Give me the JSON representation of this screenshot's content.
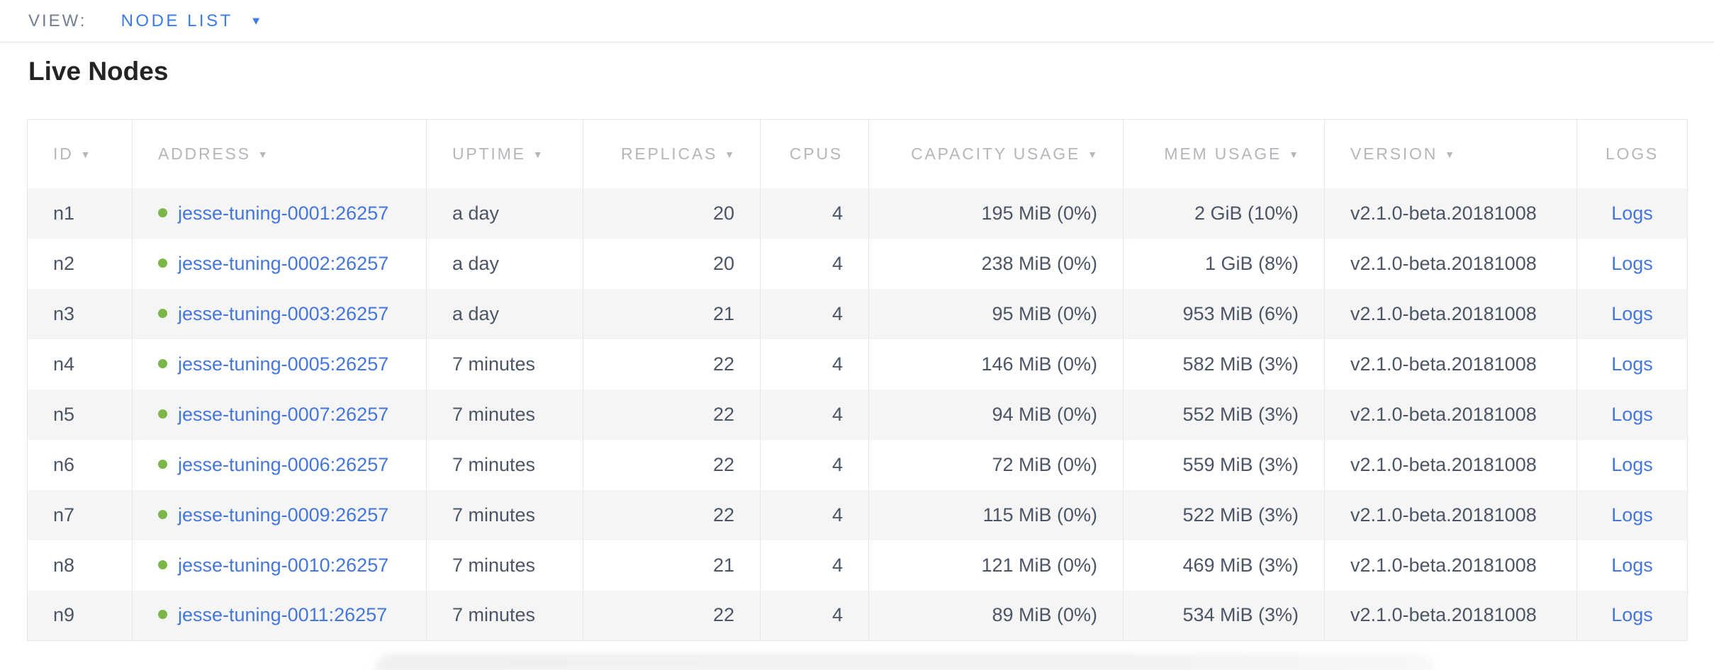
{
  "view_bar": {
    "label": "VIEW:",
    "selected": "NODE LIST"
  },
  "page": {
    "title": "Live Nodes"
  },
  "colors": {
    "view_link_blue": "#3b7ce8",
    "link_blue": "#4477dd",
    "live_status_green": "#7ab648",
    "header_text_gray": "#b3b6ba",
    "cell_text": "#4c5566",
    "row_stripe": "#f5f5f6",
    "border": "#e7e7e7"
  },
  "table": {
    "columns": [
      {
        "key": "id",
        "label": "ID",
        "sortable": true,
        "align": "left"
      },
      {
        "key": "address",
        "label": "ADDRESS",
        "sortable": true,
        "align": "left"
      },
      {
        "key": "uptime",
        "label": "UPTIME",
        "sortable": true,
        "align": "left"
      },
      {
        "key": "replicas",
        "label": "REPLICAS",
        "sortable": true,
        "align": "right"
      },
      {
        "key": "cpus",
        "label": "CPUS",
        "sortable": false,
        "align": "right"
      },
      {
        "key": "capacity",
        "label": "CAPACITY USAGE",
        "sortable": true,
        "align": "right"
      },
      {
        "key": "mem",
        "label": "MEM USAGE",
        "sortable": true,
        "align": "right"
      },
      {
        "key": "version",
        "label": "VERSION",
        "sortable": true,
        "align": "left"
      },
      {
        "key": "logs",
        "label": "LOGS",
        "sortable": false,
        "align": "center"
      }
    ],
    "rows": [
      {
        "id": "n1",
        "address": "jesse-tuning-0001:26257",
        "status": "live",
        "uptime": "a day",
        "replicas": "20",
        "cpus": "4",
        "capacity": "195 MiB (0%)",
        "mem": "2 GiB (10%)",
        "version": "v2.1.0-beta.20181008",
        "logs": "Logs"
      },
      {
        "id": "n2",
        "address": "jesse-tuning-0002:26257",
        "status": "live",
        "uptime": "a day",
        "replicas": "20",
        "cpus": "4",
        "capacity": "238 MiB (0%)",
        "mem": "1 GiB (8%)",
        "version": "v2.1.0-beta.20181008",
        "logs": "Logs"
      },
      {
        "id": "n3",
        "address": "jesse-tuning-0003:26257",
        "status": "live",
        "uptime": "a day",
        "replicas": "21",
        "cpus": "4",
        "capacity": "95 MiB (0%)",
        "mem": "953 MiB (6%)",
        "version": "v2.1.0-beta.20181008",
        "logs": "Logs"
      },
      {
        "id": "n4",
        "address": "jesse-tuning-0005:26257",
        "status": "live",
        "uptime": "7 minutes",
        "replicas": "22",
        "cpus": "4",
        "capacity": "146 MiB (0%)",
        "mem": "582 MiB (3%)",
        "version": "v2.1.0-beta.20181008",
        "logs": "Logs"
      },
      {
        "id": "n5",
        "address": "jesse-tuning-0007:26257",
        "status": "live",
        "uptime": "7 minutes",
        "replicas": "22",
        "cpus": "4",
        "capacity": "94 MiB (0%)",
        "mem": "552 MiB (3%)",
        "version": "v2.1.0-beta.20181008",
        "logs": "Logs"
      },
      {
        "id": "n6",
        "address": "jesse-tuning-0006:26257",
        "status": "live",
        "uptime": "7 minutes",
        "replicas": "22",
        "cpus": "4",
        "capacity": "72 MiB (0%)",
        "mem": "559 MiB (3%)",
        "version": "v2.1.0-beta.20181008",
        "logs": "Logs"
      },
      {
        "id": "n7",
        "address": "jesse-tuning-0009:26257",
        "status": "live",
        "uptime": "7 minutes",
        "replicas": "22",
        "cpus": "4",
        "capacity": "115 MiB (0%)",
        "mem": "522 MiB (3%)",
        "version": "v2.1.0-beta.20181008",
        "logs": "Logs"
      },
      {
        "id": "n8",
        "address": "jesse-tuning-0010:26257",
        "status": "live",
        "uptime": "7 minutes",
        "replicas": "21",
        "cpus": "4",
        "capacity": "121 MiB (0%)",
        "mem": "469 MiB (3%)",
        "version": "v2.1.0-beta.20181008",
        "logs": "Logs"
      },
      {
        "id": "n9",
        "address": "jesse-tuning-0011:26257",
        "status": "live",
        "uptime": "7 minutes",
        "replicas": "22",
        "cpus": "4",
        "capacity": "89 MiB (0%)",
        "mem": "534 MiB (3%)",
        "version": "v2.1.0-beta.20181008",
        "logs": "Logs"
      }
    ]
  }
}
